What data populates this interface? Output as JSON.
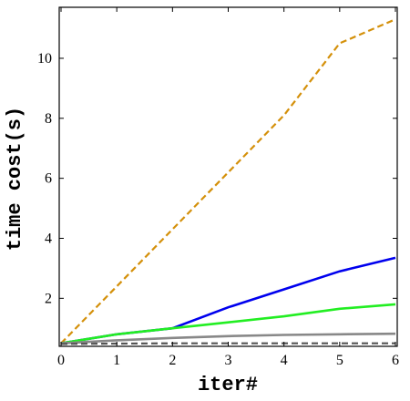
{
  "chart_data": {
    "type": "line",
    "title": "",
    "xlabel": "iter#",
    "ylabel": "time cost(s)",
    "xlim": [
      0,
      6
    ],
    "ylim": [
      0.4,
      11.7
    ],
    "grid": false,
    "legend": "none",
    "x_ticks": [
      0,
      1,
      2,
      3,
      4,
      5,
      6
    ],
    "y_ticks": [
      2,
      4,
      6,
      8,
      10
    ],
    "series": [
      {
        "color": "#D4900A",
        "style": "dashed",
        "x": [
          0,
          1,
          2,
          3,
          4,
          5,
          6
        ],
        "values": [
          0.5,
          2.4,
          4.3,
          6.2,
          8.1,
          10.5,
          11.3
        ]
      },
      {
        "color": "#0000EE",
        "style": "solid",
        "x": [
          0,
          1,
          2,
          3,
          4,
          5,
          6
        ],
        "values": [
          0.5,
          0.8,
          1.0,
          1.7,
          2.3,
          2.9,
          3.35
        ]
      },
      {
        "color": "#22EE22",
        "style": "solid",
        "x": [
          0,
          1,
          2,
          3,
          4,
          5,
          6
        ],
        "values": [
          0.5,
          0.8,
          1.0,
          1.2,
          1.4,
          1.65,
          1.8
        ]
      },
      {
        "color": "#888888",
        "style": "solid",
        "x": [
          0,
          1,
          2,
          3,
          4,
          5,
          6
        ],
        "values": [
          0.5,
          0.6,
          0.68,
          0.74,
          0.78,
          0.8,
          0.82
        ]
      },
      {
        "color": "#555555",
        "style": "dashed",
        "x": [
          0,
          1,
          2,
          3,
          4,
          5,
          6
        ],
        "values": [
          0.48,
          0.49,
          0.5,
          0.5,
          0.5,
          0.5,
          0.5
        ]
      }
    ]
  }
}
